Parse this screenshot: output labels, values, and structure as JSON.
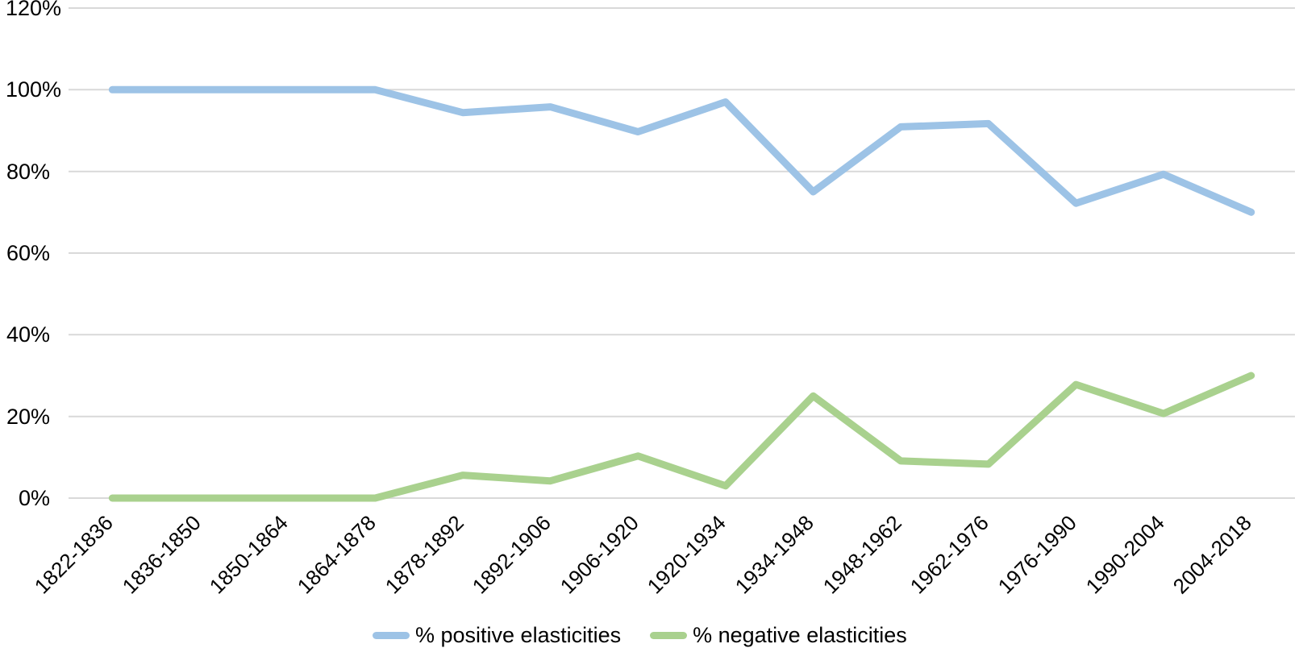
{
  "chart_data": {
    "type": "line",
    "categories": [
      "1822-1836",
      "1836-1850",
      "1850-1864",
      "1864-1878",
      "1878-1892",
      "1892-1906",
      "1906-1920",
      "1920-1934",
      "1934-1948",
      "1948-1962",
      "1962-1976",
      "1976-1990",
      "1990-2004",
      "2004-2018"
    ],
    "series": [
      {
        "name": "% positive elasticities",
        "color": "#9DC3E6",
        "values": [
          100,
          100,
          100,
          100,
          94.4,
          95.8,
          89.7,
          97.0,
          75.0,
          90.9,
          91.7,
          72.2,
          79.3,
          70.0
        ]
      },
      {
        "name": "% negative elasticities",
        "color": "#A9D18E",
        "values": [
          0,
          0,
          0,
          0,
          5.6,
          4.2,
          10.3,
          3.0,
          25.0,
          9.1,
          8.3,
          27.8,
          20.7,
          30.0
        ]
      }
    ],
    "title": "",
    "xlabel": "",
    "ylabel": "",
    "ylim": [
      0,
      120
    ],
    "ytick_step": 20,
    "ytick_labels": [
      "0%",
      "20%",
      "40%",
      "60%",
      "80%",
      "100%",
      "120%"
    ],
    "grid": "horizontal-only",
    "gridline_color": "#D9D9D9",
    "legend_position": "bottom",
    "x_tick_rotation_deg": 45
  }
}
